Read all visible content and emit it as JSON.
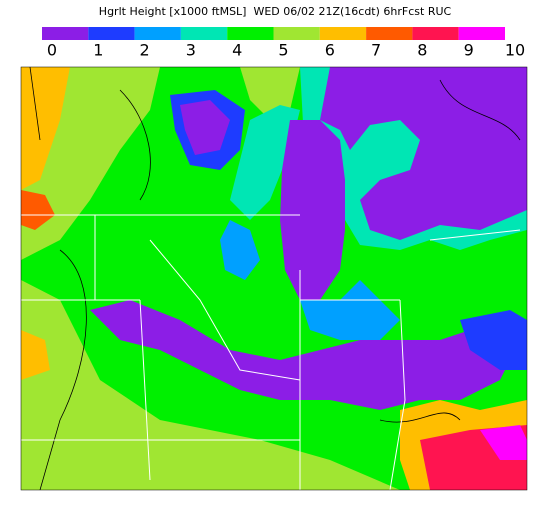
{
  "title": "Hgrlt Height [x1000 ftMSL]  WED 06/02 21Z(16cdt) 6hrFcst RUC",
  "colorbar": {
    "colors": [
      "#8c1ee6",
      "#1e3cff",
      "#00a0ff",
      "#00e6b4",
      "#00f000",
      "#a0e632",
      "#ffbe00",
      "#ff5a00",
      "#ff1450",
      "#ff00ff"
    ],
    "labels": [
      "0",
      "1",
      "2",
      "3",
      "4",
      "5",
      "6",
      "7",
      "8",
      "9",
      "10"
    ]
  }
}
